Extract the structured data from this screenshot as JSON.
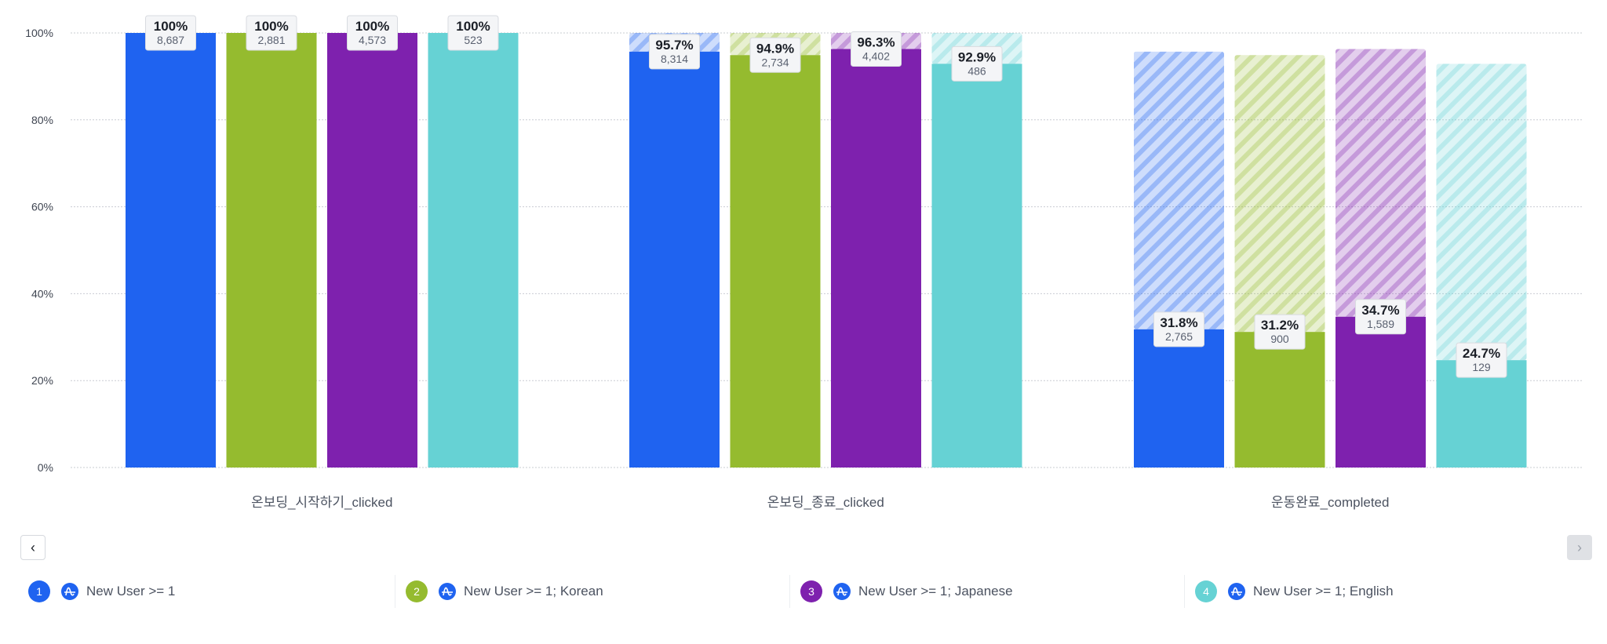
{
  "chart_data": {
    "type": "bar",
    "subtype": "funnel-grouped",
    "title": "",
    "xlabel": "",
    "ylabel": "",
    "ylim": [
      0,
      100
    ],
    "yticks": [
      "0%",
      "20%",
      "40%",
      "60%",
      "80%",
      "100%"
    ],
    "grid": true,
    "legend_position": "bottom",
    "categories": [
      "온보딩_시작하기_clicked",
      "온보딩_종료_clicked",
      "운동완료_completed"
    ],
    "series": [
      {
        "name": "New User >= 1",
        "index": "1",
        "color": "#1f63f0",
        "values": [
          100,
          95.7,
          31.8
        ],
        "labels": [
          "100%",
          "95.7%",
          "31.8%"
        ],
        "counts": [
          "8,687",
          "8,314",
          "2,765"
        ],
        "previous_step": [
          null,
          100,
          95.7
        ]
      },
      {
        "name": "New User >= 1; Korean",
        "index": "2",
        "color": "#95bb2f",
        "values": [
          100,
          94.9,
          31.2
        ],
        "labels": [
          "100%",
          "94.9%",
          "31.2%"
        ],
        "counts": [
          "2,881",
          "2,734",
          "900"
        ],
        "previous_step": [
          null,
          100,
          94.9
        ]
      },
      {
        "name": "New User >= 1; Japanese",
        "index": "3",
        "color": "#7e21ae",
        "values": [
          100,
          96.3,
          34.7
        ],
        "labels": [
          "100%",
          "96.3%",
          "34.7%"
        ],
        "counts": [
          "4,573",
          "4,402",
          "1,589"
        ],
        "previous_step": [
          null,
          100,
          96.3
        ]
      },
      {
        "name": "New User >= 1; English",
        "index": "4",
        "color": "#66d2d4",
        "values": [
          100,
          92.9,
          24.7
        ],
        "labels": [
          "100%",
          "92.9%",
          "24.7%"
        ],
        "counts": [
          "523",
          "486",
          "129"
        ],
        "previous_step": [
          null,
          100,
          92.9
        ]
      }
    ]
  },
  "pagination": {
    "prev_icon": "chevron-left-icon",
    "next_icon": "chevron-right-icon",
    "prev_glyph": "‹",
    "next_glyph": "›"
  },
  "legend": {
    "items": [
      {
        "num": "1",
        "label": "New User >= 1",
        "color": "#1f63f0",
        "icon": "amplitude-logo-icon"
      },
      {
        "num": "2",
        "label": "New User >= 1; Korean",
        "color": "#95bb2f",
        "icon": "amplitude-logo-icon"
      },
      {
        "num": "3",
        "label": "New User >= 1; Japanese",
        "color": "#7e21ae",
        "icon": "amplitude-logo-icon"
      },
      {
        "num": "4",
        "label": "New User >= 1; English",
        "color": "#66d2d4",
        "icon": "amplitude-logo-icon"
      }
    ]
  }
}
